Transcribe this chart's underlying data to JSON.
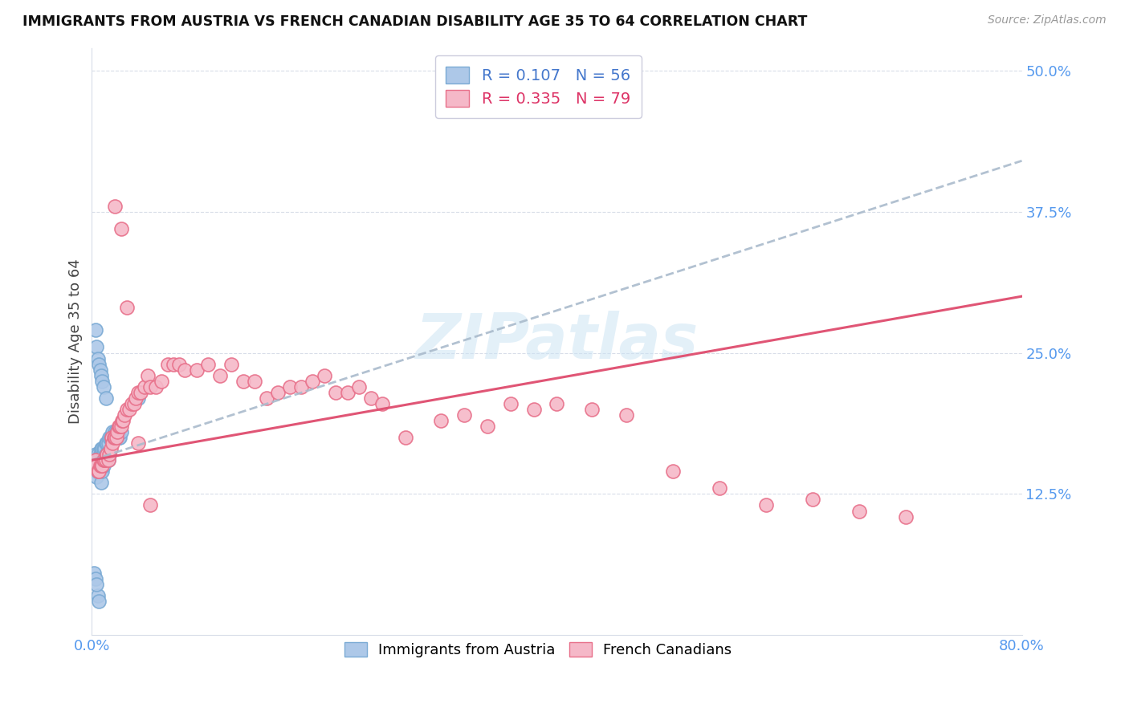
{
  "title": "IMMIGRANTS FROM AUSTRIA VS FRENCH CANADIAN DISABILITY AGE 35 TO 64 CORRELATION CHART",
  "source": "Source: ZipAtlas.com",
  "ylabel": "Disability Age 35 to 64",
  "xlim": [
    0.0,
    0.8
  ],
  "ylim": [
    0.0,
    0.52
  ],
  "austria_color": "#adc8e8",
  "austria_edge_color": "#7aaad4",
  "french_color": "#f5b8c8",
  "french_edge_color": "#e8708a",
  "austria_line_color": "#6688bb",
  "french_line_color": "#e05575",
  "grid_color": "#d8dde8",
  "tick_color": "#5599ee",
  "legend_austria_r": "R = 0.107",
  "legend_austria_n": "N = 56",
  "legend_french_r": "R = 0.335",
  "legend_french_n": "N = 79",
  "austria_x": [
    0.002,
    0.003,
    0.003,
    0.004,
    0.004,
    0.005,
    0.005,
    0.005,
    0.006,
    0.006,
    0.006,
    0.007,
    0.007,
    0.007,
    0.008,
    0.008,
    0.008,
    0.009,
    0.009,
    0.009,
    0.01,
    0.01,
    0.01,
    0.011,
    0.011,
    0.012,
    0.012,
    0.013,
    0.013,
    0.014,
    0.014,
    0.015,
    0.015,
    0.016,
    0.017,
    0.018,
    0.019,
    0.02,
    0.021,
    0.022,
    0.023,
    0.024,
    0.025,
    0.003,
    0.004,
    0.005,
    0.006,
    0.007,
    0.008,
    0.009,
    0.01,
    0.012,
    0.04,
    0.002,
    0.003,
    0.004
  ],
  "austria_y": [
    0.155,
    0.16,
    0.145,
    0.155,
    0.14,
    0.16,
    0.145,
    0.035,
    0.155,
    0.145,
    0.03,
    0.16,
    0.15,
    0.145,
    0.165,
    0.155,
    0.135,
    0.165,
    0.155,
    0.145,
    0.165,
    0.16,
    0.15,
    0.165,
    0.155,
    0.17,
    0.16,
    0.17,
    0.16,
    0.17,
    0.155,
    0.175,
    0.16,
    0.175,
    0.175,
    0.18,
    0.175,
    0.18,
    0.18,
    0.175,
    0.175,
    0.175,
    0.18,
    0.27,
    0.255,
    0.245,
    0.24,
    0.235,
    0.23,
    0.225,
    0.22,
    0.21,
    0.21,
    0.055,
    0.05,
    0.045
  ],
  "french_x": [
    0.003,
    0.004,
    0.005,
    0.006,
    0.007,
    0.008,
    0.009,
    0.01,
    0.011,
    0.012,
    0.013,
    0.014,
    0.015,
    0.016,
    0.017,
    0.018,
    0.019,
    0.02,
    0.021,
    0.022,
    0.023,
    0.024,
    0.025,
    0.026,
    0.027,
    0.028,
    0.03,
    0.032,
    0.034,
    0.036,
    0.038,
    0.04,
    0.042,
    0.045,
    0.048,
    0.05,
    0.055,
    0.06,
    0.065,
    0.07,
    0.075,
    0.08,
    0.09,
    0.1,
    0.11,
    0.12,
    0.13,
    0.14,
    0.15,
    0.16,
    0.17,
    0.18,
    0.19,
    0.2,
    0.21,
    0.22,
    0.23,
    0.24,
    0.25,
    0.27,
    0.3,
    0.32,
    0.34,
    0.36,
    0.38,
    0.4,
    0.43,
    0.46,
    0.5,
    0.54,
    0.58,
    0.62,
    0.66,
    0.7,
    0.02,
    0.025,
    0.03,
    0.04,
    0.05
  ],
  "french_y": [
    0.155,
    0.15,
    0.145,
    0.145,
    0.15,
    0.15,
    0.15,
    0.155,
    0.155,
    0.155,
    0.16,
    0.155,
    0.16,
    0.165,
    0.175,
    0.17,
    0.175,
    0.175,
    0.175,
    0.18,
    0.185,
    0.185,
    0.185,
    0.19,
    0.19,
    0.195,
    0.2,
    0.2,
    0.205,
    0.205,
    0.21,
    0.215,
    0.215,
    0.22,
    0.23,
    0.22,
    0.22,
    0.225,
    0.24,
    0.24,
    0.24,
    0.235,
    0.235,
    0.24,
    0.23,
    0.24,
    0.225,
    0.225,
    0.21,
    0.215,
    0.22,
    0.22,
    0.225,
    0.23,
    0.215,
    0.215,
    0.22,
    0.21,
    0.205,
    0.175,
    0.19,
    0.195,
    0.185,
    0.205,
    0.2,
    0.205,
    0.2,
    0.195,
    0.145,
    0.13,
    0.115,
    0.12,
    0.11,
    0.105,
    0.38,
    0.36,
    0.29,
    0.17,
    0.115
  ]
}
